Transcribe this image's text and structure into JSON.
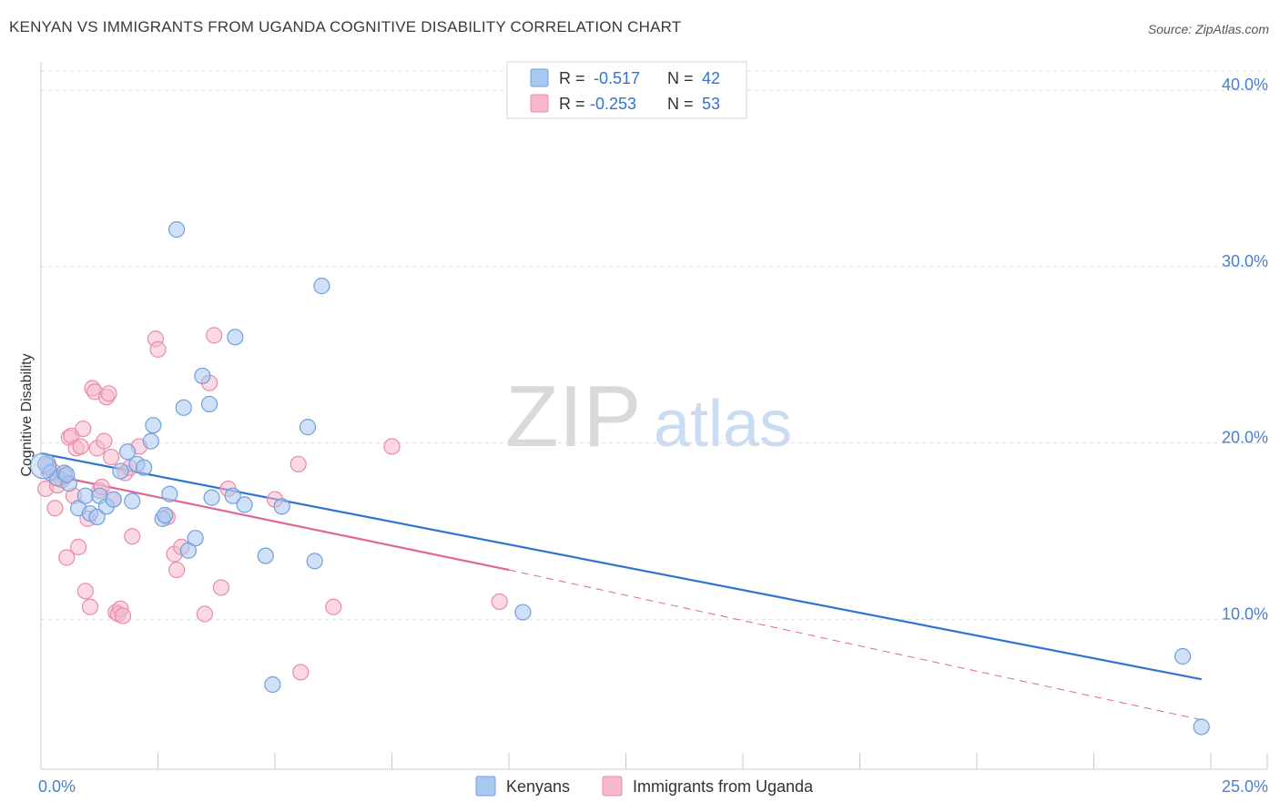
{
  "title": "KENYAN VS IMMIGRANTS FROM UGANDA COGNITIVE DISABILITY CORRELATION CHART",
  "source": "Source: ZipAtlas.com",
  "watermark": {
    "zip": "ZIP",
    "atlas": "atlas"
  },
  "colors": {
    "blue_fill": "#a9c8f0",
    "blue_stroke": "#6f9fdc",
    "blue_line": "#2f74d0",
    "pink_fill": "#f5b9cb",
    "pink_stroke": "#e98aa9",
    "pink_line": "#e06593",
    "axis_text": "#4a7fd0",
    "grid": "#dcdcdc"
  },
  "legend": {
    "rows": [
      {
        "r_label": "R =",
        "r_value": "-0.517",
        "n_label": "N =",
        "n_value": "42"
      },
      {
        "r_label": "R =",
        "r_value": "-0.253",
        "n_label": "N =",
        "n_value": "53"
      }
    ]
  },
  "chart_data": {
    "type": "scatter",
    "title": "KENYAN VS IMMIGRANTS FROM UGANDA COGNITIVE DISABILITY CORRELATION CHART",
    "xlabel": "",
    "ylabel": "Cognitive Disability",
    "xlim": [
      0,
      25
    ],
    "ylim": [
      1.5,
      41.5
    ],
    "x_tick_labels": [
      "0.0%",
      "25.0%"
    ],
    "y_ticks": [
      10,
      20,
      30,
      40
    ],
    "y_tick_labels": [
      "10.0%",
      "20.0%",
      "30.0%",
      "40.0%"
    ],
    "grid": true,
    "legend_position": "bottom-center",
    "series": [
      {
        "name": "Kenyans",
        "color": "#a9c8f0",
        "trend": {
          "x": [
            0,
            24.8
          ],
          "y": [
            19.4,
            6.6
          ]
        },
        "points": [
          [
            0.1,
            18.8
          ],
          [
            0.2,
            18.3
          ],
          [
            0.35,
            18.0
          ],
          [
            0.5,
            18.3
          ],
          [
            0.6,
            17.7
          ],
          [
            0.8,
            16.3
          ],
          [
            0.95,
            17.0
          ],
          [
            1.05,
            16.0
          ],
          [
            1.2,
            15.8
          ],
          [
            1.25,
            17.0
          ],
          [
            1.4,
            16.4
          ],
          [
            1.55,
            16.8
          ],
          [
            1.7,
            18.4
          ],
          [
            1.85,
            19.5
          ],
          [
            1.95,
            16.7
          ],
          [
            2.05,
            18.8
          ],
          [
            2.2,
            18.6
          ],
          [
            2.35,
            20.1
          ],
          [
            2.4,
            21.0
          ],
          [
            2.6,
            15.7
          ],
          [
            2.65,
            15.9
          ],
          [
            2.75,
            17.1
          ],
          [
            2.9,
            32.1
          ],
          [
            3.05,
            22.0
          ],
          [
            3.15,
            13.9
          ],
          [
            3.3,
            14.6
          ],
          [
            3.45,
            23.8
          ],
          [
            3.6,
            22.2
          ],
          [
            3.65,
            16.9
          ],
          [
            4.1,
            17.0
          ],
          [
            4.15,
            26.0
          ],
          [
            4.35,
            16.5
          ],
          [
            4.8,
            13.6
          ],
          [
            4.95,
            6.3
          ],
          [
            5.15,
            16.4
          ],
          [
            5.7,
            20.9
          ],
          [
            5.85,
            13.3
          ],
          [
            6.0,
            28.9
          ],
          [
            10.3,
            10.4
          ],
          [
            24.4,
            7.9
          ],
          [
            24.8,
            3.9
          ],
          [
            0.55,
            18.2
          ]
        ]
      },
      {
        "name": "Immigrants from Uganda",
        "color": "#f5b9cb",
        "trend": {
          "x": [
            0,
            10
          ],
          "y": [
            18.3,
            12.8
          ]
        },
        "trend_dashed": {
          "x": [
            10,
            24.8
          ],
          "y": [
            12.8,
            4.3
          ]
        },
        "points": [
          [
            0.1,
            17.4
          ],
          [
            0.15,
            18.7
          ],
          [
            0.25,
            18.4
          ],
          [
            0.3,
            16.3
          ],
          [
            0.35,
            17.6
          ],
          [
            0.45,
            17.9
          ],
          [
            0.5,
            18.1
          ],
          [
            0.55,
            13.5
          ],
          [
            0.6,
            20.3
          ],
          [
            0.65,
            20.4
          ],
          [
            0.7,
            17.0
          ],
          [
            0.75,
            19.7
          ],
          [
            0.8,
            14.1
          ],
          [
            0.85,
            19.8
          ],
          [
            0.9,
            20.8
          ],
          [
            0.95,
            11.6
          ],
          [
            1.0,
            15.7
          ],
          [
            1.05,
            10.7
          ],
          [
            1.1,
            23.1
          ],
          [
            1.15,
            22.9
          ],
          [
            1.2,
            19.7
          ],
          [
            1.25,
            17.3
          ],
          [
            1.3,
            17.5
          ],
          [
            1.35,
            20.1
          ],
          [
            1.4,
            22.6
          ],
          [
            1.45,
            22.8
          ],
          [
            1.5,
            19.2
          ],
          [
            1.55,
            16.8
          ],
          [
            1.6,
            10.4
          ],
          [
            1.65,
            10.3
          ],
          [
            1.7,
            10.6
          ],
          [
            1.75,
            10.2
          ],
          [
            1.8,
            18.3
          ],
          [
            1.9,
            18.6
          ],
          [
            1.95,
            14.7
          ],
          [
            2.1,
            19.8
          ],
          [
            2.45,
            25.9
          ],
          [
            2.5,
            25.3
          ],
          [
            2.7,
            15.8
          ],
          [
            2.85,
            13.7
          ],
          [
            2.9,
            12.8
          ],
          [
            3.0,
            14.1
          ],
          [
            3.5,
            10.3
          ],
          [
            3.6,
            23.4
          ],
          [
            3.7,
            26.1
          ],
          [
            3.85,
            11.8
          ],
          [
            4.0,
            17.4
          ],
          [
            5.0,
            16.8
          ],
          [
            5.5,
            18.8
          ],
          [
            5.55,
            7.0
          ],
          [
            6.25,
            10.7
          ],
          [
            7.5,
            19.8
          ],
          [
            9.8,
            11.0
          ]
        ]
      }
    ]
  }
}
